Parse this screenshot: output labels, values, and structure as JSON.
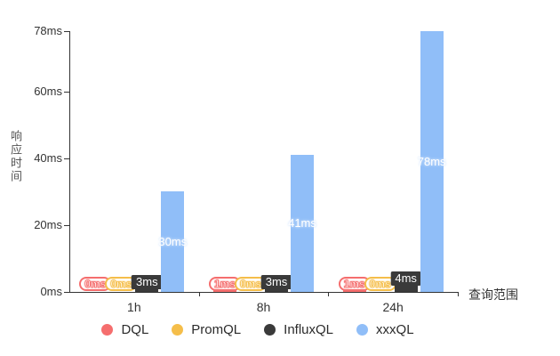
{
  "chart_data": {
    "type": "bar",
    "categories": [
      "1h",
      "8h",
      "24h"
    ],
    "series": [
      {
        "name": "DQL",
        "color": "#f56e6e",
        "values": [
          0,
          1,
          1
        ],
        "data_labels": [
          "0ms",
          "1ms",
          "1ms"
        ],
        "label_style": "pill"
      },
      {
        "name": "PromQL",
        "color": "#f5be4a",
        "values": [
          0,
          0,
          0
        ],
        "data_labels": [
          "0ms",
          "0ms",
          "0ms"
        ],
        "label_style": "pill"
      },
      {
        "name": "InfluxQL",
        "color": "#3a3a3a",
        "values": [
          3,
          3,
          4
        ],
        "data_labels": [
          "3ms",
          "3ms",
          "4ms"
        ],
        "label_style": "box"
      },
      {
        "name": "xxxQL",
        "color": "#90bef8",
        "values": [
          30,
          41,
          78
        ],
        "data_labels": [
          "30ms",
          "41ms",
          "78ms"
        ],
        "label_style": "inside"
      }
    ],
    "title": "",
    "xlabel": "查询范围",
    "ylabel": "响应时间",
    "ylim": [
      0,
      78
    ],
    "yticks": [
      0,
      20,
      40,
      60,
      78
    ],
    "ytick_labels": [
      "0ms",
      "20ms",
      "40ms",
      "60ms",
      "78ms"
    ],
    "legend_position": "bottom",
    "grid": false,
    "axis_color": "#333333",
    "background_color": "#ffffff"
  }
}
